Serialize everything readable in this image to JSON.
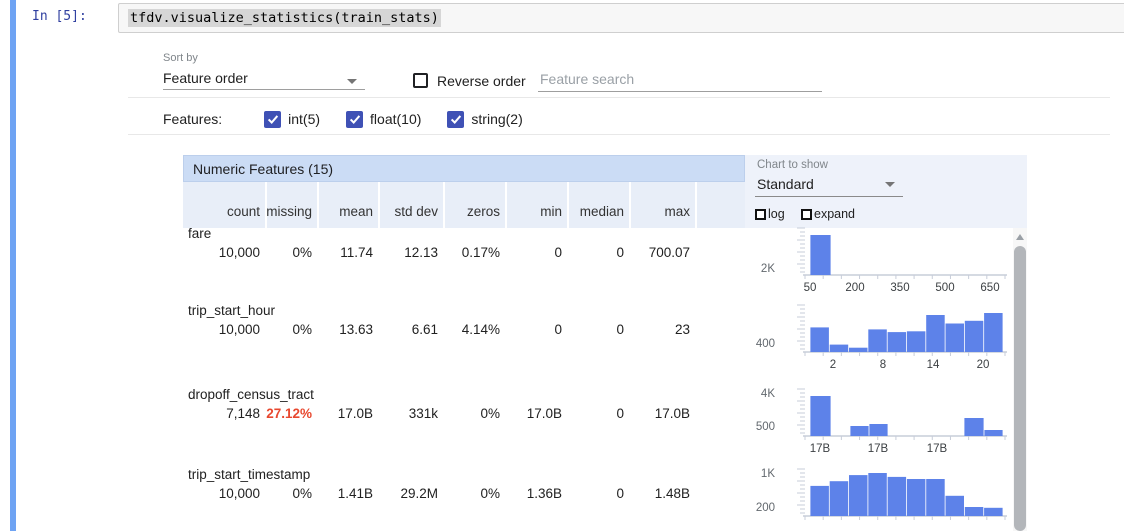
{
  "notebook": {
    "prompt": "In [5]:",
    "code": "tfdv.visualize_statistics(train_stats)"
  },
  "controls": {
    "sort_by_label": "Sort by",
    "sort_by_value": "Feature order",
    "reverse_order_label": "Reverse order",
    "search_placeholder": "Feature search",
    "features_label": "Features:",
    "feature_types": [
      {
        "label": "int(5)",
        "checked": true
      },
      {
        "label": "float(10)",
        "checked": true
      },
      {
        "label": "string(2)",
        "checked": true
      }
    ]
  },
  "chart_controls": {
    "chart_to_show_label": "Chart to show",
    "chart_type_value": "Standard",
    "log_label": "log",
    "expand_label": "expand"
  },
  "table": {
    "title": "Numeric Features (15)",
    "columns": [
      "count",
      "missing",
      "mean",
      "std dev",
      "zeros",
      "min",
      "median",
      "max"
    ],
    "rows": [
      {
        "name": "fare",
        "values": [
          "10,000",
          "0%",
          "11.74",
          "12.13",
          "0.17%",
          "0",
          "0",
          "700.07"
        ],
        "alert_indexes": []
      },
      {
        "name": "trip_start_hour",
        "values": [
          "10,000",
          "0%",
          "13.63",
          "6.61",
          "4.14%",
          "0",
          "0",
          "23"
        ],
        "alert_indexes": []
      },
      {
        "name": "dropoff_census_tract",
        "values": [
          "7,148",
          "27.12%",
          "17.0B",
          "331k",
          "0%",
          "17.0B",
          "0",
          "17.0B"
        ],
        "alert_indexes": [
          1
        ]
      },
      {
        "name": "trip_start_timestamp",
        "values": [
          "10,000",
          "0%",
          "1.41B",
          "29.2M",
          "0%",
          "1.36B",
          "0",
          "1.48B"
        ],
        "alert_indexes": []
      }
    ]
  },
  "chart_data": [
    {
      "feature": "fare",
      "type": "bar",
      "note": "histogram of fare counts",
      "x_tick_labels": [
        "50",
        "200",
        "350",
        "500",
        "650"
      ],
      "y_tick_label": "2K",
      "est_bucket_counts": [
        8600
      ],
      "render": {
        "base": 49,
        "bar_max": 40,
        "ylabels": [
          {
            "text": "2K",
            "fy": 0.85
          }
        ],
        "xticks": [
          {
            "text": "50",
            "fx": 0.025
          },
          {
            "text": "200",
            "fx": 0.25
          },
          {
            "text": "350",
            "fx": 0.475
          },
          {
            "text": "500",
            "fx": 0.7
          },
          {
            "text": "650",
            "fx": 0.925
          }
        ],
        "bars": [
          {
            "fx": 0.025,
            "fw": 0.105,
            "fh": 1.0
          }
        ]
      }
    },
    {
      "feature": "trip_start_hour",
      "type": "bar",
      "note": "histogram of trip_start_hour counts, hours 0-23",
      "x_tick_labels": [
        "2",
        "8",
        "14",
        "20"
      ],
      "y_tick_label": "400",
      "est_bucket_counts": [
        1000,
        300,
        170,
        920,
        800,
        840,
        1520,
        1160,
        1280,
        1600
      ],
      "render": {
        "base": 49,
        "bar_max": 39,
        "ylabels": [
          {
            "text": "400",
            "fy": 0.81
          }
        ],
        "xticks": [
          {
            "text": "2",
            "fx": 0.14
          },
          {
            "text": "8",
            "fx": 0.39
          },
          {
            "text": "14",
            "fx": 0.64
          },
          {
            "text": "20",
            "fx": 0.89
          }
        ],
        "bars": [
          {
            "fx": 0.025,
            "fw": 0.0965,
            "fh": 0.63
          },
          {
            "fx": 0.1215,
            "fw": 0.0965,
            "fh": 0.19
          },
          {
            "fx": 0.218,
            "fw": 0.0965,
            "fh": 0.11
          },
          {
            "fx": 0.3145,
            "fw": 0.0965,
            "fh": 0.58
          },
          {
            "fx": 0.411,
            "fw": 0.0965,
            "fh": 0.51
          },
          {
            "fx": 0.5075,
            "fw": 0.0965,
            "fh": 0.53
          },
          {
            "fx": 0.604,
            "fw": 0.0965,
            "fh": 0.95
          },
          {
            "fx": 0.7005,
            "fw": 0.0965,
            "fh": 0.73
          },
          {
            "fx": 0.797,
            "fw": 0.0965,
            "fh": 0.8
          },
          {
            "fx": 0.8935,
            "fw": 0.0965,
            "fh": 1.0
          }
        ]
      }
    },
    {
      "feature": "dropoff_census_tract",
      "type": "bar",
      "note": "histogram of dropoff_census_tract counts",
      "x_tick_labels": [
        "17B",
        "17B",
        "17B"
      ],
      "y_tick_label": "4K / 500",
      "est_bucket_counts": [
        4000,
        600,
        700,
        1500,
        480
      ],
      "render": {
        "base": 49,
        "bar_max": 40,
        "ylabels": [
          {
            "text": "4K",
            "fy": 0.085
          },
          {
            "text": "500",
            "fy": 0.79
          }
        ],
        "xticks": [
          {
            "text": "17B",
            "fx": 0.075
          },
          {
            "text": "17B",
            "fx": 0.365
          },
          {
            "text": "17B",
            "fx": 0.66
          }
        ],
        "bars": [
          {
            "fx": 0.025,
            "fw": 0.105,
            "fh": 1.0
          },
          {
            "fx": 0.225,
            "fw": 0.095,
            "fh": 0.25
          },
          {
            "fx": 0.32,
            "fw": 0.095,
            "fh": 0.3
          },
          {
            "fx": 0.795,
            "fw": 0.1,
            "fh": 0.45
          },
          {
            "fx": 0.895,
            "fw": 0.095,
            "fh": 0.15
          }
        ]
      }
    },
    {
      "feature": "trip_start_timestamp",
      "type": "bar",
      "note": "histogram of trip_start_timestamp counts; x labels cut off by viewport",
      "x_tick_labels": [],
      "y_tick_label": "1K / 200",
      "est_bucket_counts": [
        670,
        780,
        910,
        960,
        870,
        830,
        815,
        450,
        200,
        170
      ],
      "render": {
        "base": 49,
        "bar_max": 43,
        "ylabels": [
          {
            "text": "1K",
            "fy": 0.085
          },
          {
            "text": "200",
            "fy": 0.81
          }
        ],
        "xticks": [],
        "bars": [
          {
            "fx": 0.025,
            "fw": 0.0965,
            "fh": 0.7
          },
          {
            "fx": 0.1215,
            "fw": 0.0965,
            "fh": 0.81
          },
          {
            "fx": 0.218,
            "fw": 0.0965,
            "fh": 0.95
          },
          {
            "fx": 0.3145,
            "fw": 0.0965,
            "fh": 1.0
          },
          {
            "fx": 0.411,
            "fw": 0.0965,
            "fh": 0.91
          },
          {
            "fx": 0.5075,
            "fw": 0.0965,
            "fh": 0.86
          },
          {
            "fx": 0.604,
            "fw": 0.0965,
            "fh": 0.86
          },
          {
            "fx": 0.7005,
            "fw": 0.0965,
            "fh": 0.47
          },
          {
            "fx": 0.797,
            "fw": 0.0965,
            "fh": 0.21
          },
          {
            "fx": 0.8935,
            "fw": 0.0965,
            "fh": 0.19
          }
        ]
      }
    }
  ],
  "colors": {
    "cell_indicator": "#6ea3f3",
    "prompt_blue": "#3040a0",
    "code_bg": "#f7f7f7",
    "code_border": "#cfcfcf",
    "code_selection": "#d6d6d6",
    "accent_indigo": "#3f51b5",
    "divider": "#e8e8e8",
    "table_title_bg": "#cbdcf5",
    "table_title_border": "#bccfec",
    "table_header_bg": "#e8eef8",
    "panel_bg": "#eef2fa",
    "bar_blue": "#5d82e9",
    "alert_red": "#e8482f",
    "axis_gray": "#c7cdd9",
    "tick_label": "#3c4043",
    "ylabel_gray": "#62686e",
    "label_gray": "#80868b",
    "underline_gray": "#9e9e9e",
    "text_dark": "#212121",
    "scroll_thumb": "#b3b6ba"
  }
}
